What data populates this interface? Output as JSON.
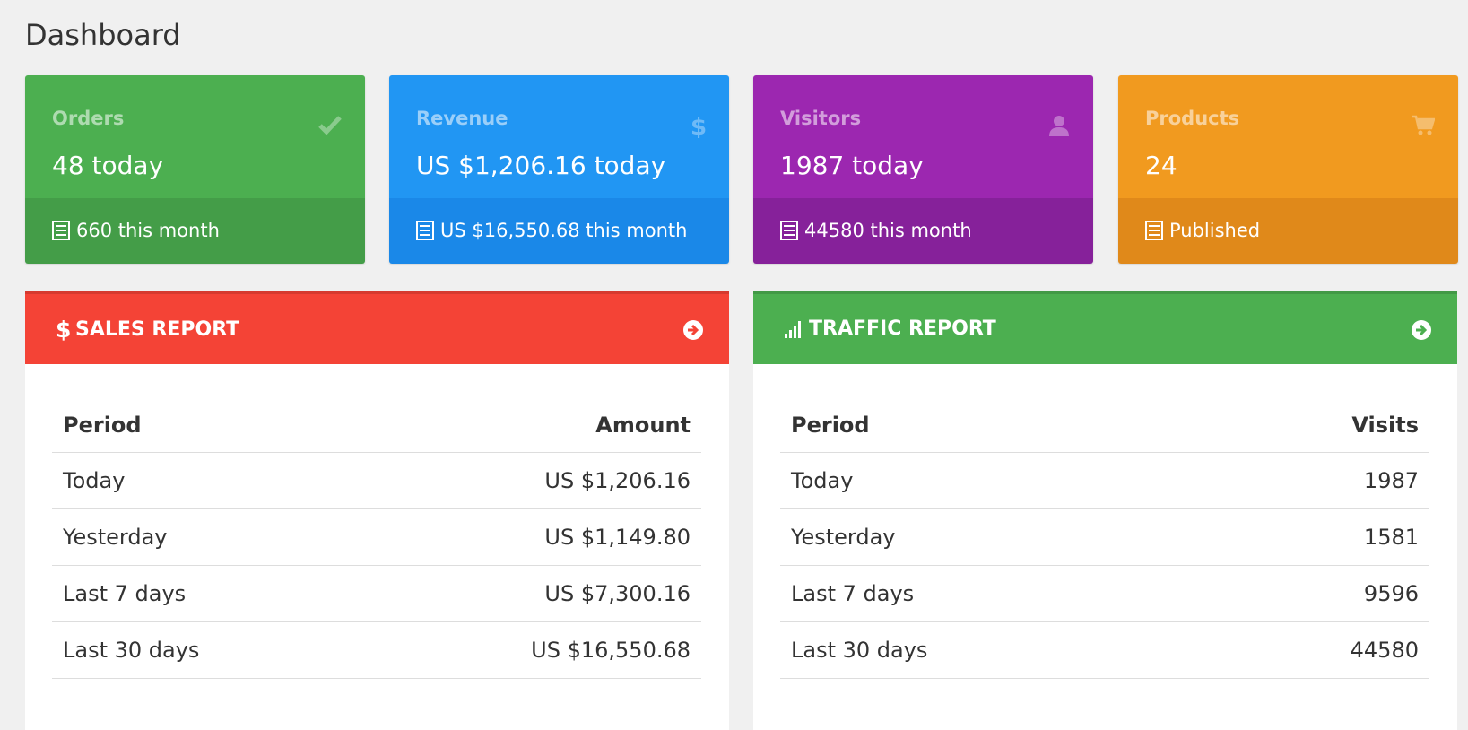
{
  "page": {
    "title": "Dashboard"
  },
  "stats": [
    {
      "label": "Orders",
      "value": "48 today",
      "footer": "660 this month",
      "icon": "check-icon",
      "color": "#4caf50",
      "footer_color": "#449d48"
    },
    {
      "label": "Revenue",
      "value": "US $1,206.16 today",
      "footer": "US $16,550.68 this month",
      "icon": "dollar-icon",
      "color": "#2196f3",
      "footer_color": "#1a88e8"
    },
    {
      "label": "Visitors",
      "value": "1987 today",
      "footer": "44580 this month",
      "icon": "user-icon",
      "color": "#9c27b0",
      "footer_color": "#86219a"
    },
    {
      "label": "Products",
      "value": "24",
      "footer": "Published",
      "icon": "cart-icon",
      "color": "#f19a1f",
      "footer_color": "#e0891a"
    }
  ],
  "sales_report": {
    "title": "SALES REPORT",
    "icon": "dollar-icon",
    "color": "#f44336",
    "columns": [
      "Period",
      "Amount"
    ],
    "rows": [
      {
        "period": "Today",
        "value": "US $1,206.16"
      },
      {
        "period": "Yesterday",
        "value": "US $1,149.80"
      },
      {
        "period": "Last 7 days",
        "value": "US $7,300.16"
      },
      {
        "period": "Last 30 days",
        "value": "US $16,550.68"
      }
    ]
  },
  "traffic_report": {
    "title": "TRAFFIC REPORT",
    "icon": "signal-bars-icon",
    "color": "#4caf50",
    "columns": [
      "Period",
      "Visits"
    ],
    "rows": [
      {
        "period": "Today",
        "value": "1987"
      },
      {
        "period": "Yesterday",
        "value": "1581"
      },
      {
        "period": "Last 7 days",
        "value": "9596"
      },
      {
        "period": "Last 30 days",
        "value": "44580"
      }
    ]
  }
}
